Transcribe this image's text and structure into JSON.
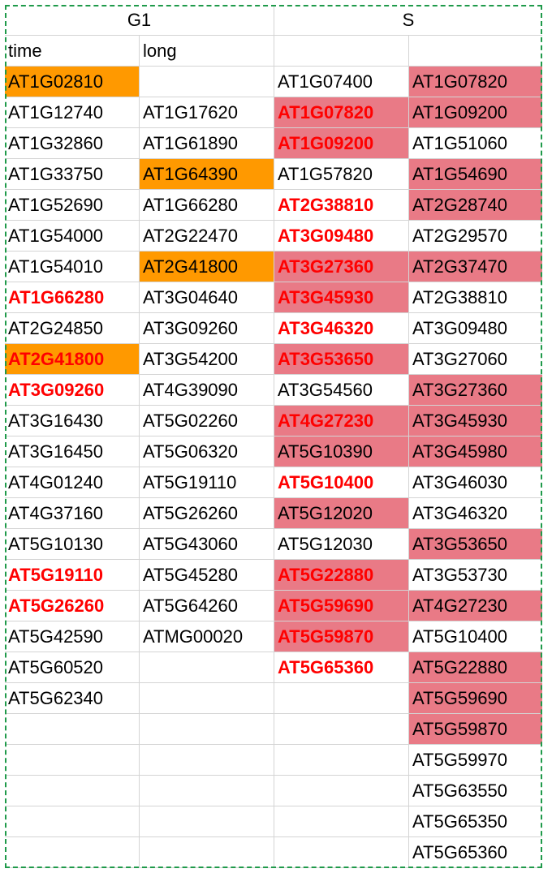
{
  "header": {
    "g1": "G1",
    "s": "S"
  },
  "subheader": [
    "time",
    "long",
    "",
    ""
  ],
  "rows": [
    [
      {
        "t": "AT1G02810",
        "bg": "orange"
      },
      {
        "t": ""
      },
      {
        "t": "AT1G07400"
      },
      {
        "t": "AT1G07820",
        "bg": "pink"
      }
    ],
    [
      {
        "t": "AT1G12740"
      },
      {
        "t": "AT1G17620"
      },
      {
        "t": "AT1G07820",
        "bg": "pink",
        "red": true
      },
      {
        "t": "AT1G09200",
        "bg": "pink"
      }
    ],
    [
      {
        "t": "AT1G32860"
      },
      {
        "t": "AT1G61890"
      },
      {
        "t": "AT1G09200",
        "bg": "pink",
        "red": true
      },
      {
        "t": "AT1G51060"
      }
    ],
    [
      {
        "t": "AT1G33750"
      },
      {
        "t": "AT1G64390",
        "bg": "orange"
      },
      {
        "t": "AT1G57820"
      },
      {
        "t": "AT1G54690",
        "bg": "pink"
      }
    ],
    [
      {
        "t": "AT1G52690"
      },
      {
        "t": "AT1G66280"
      },
      {
        "t": "AT2G38810",
        "red": true
      },
      {
        "t": "AT2G28740",
        "bg": "pink"
      }
    ],
    [
      {
        "t": "AT1G54000"
      },
      {
        "t": "AT2G22470"
      },
      {
        "t": "AT3G09480",
        "red": true
      },
      {
        "t": "AT2G29570"
      }
    ],
    [
      {
        "t": "AT1G54010"
      },
      {
        "t": "AT2G41800",
        "bg": "orange"
      },
      {
        "t": "AT3G27360",
        "bg": "pink",
        "red": true
      },
      {
        "t": "AT2G37470",
        "bg": "pink"
      }
    ],
    [
      {
        "t": "AT1G66280",
        "red": true
      },
      {
        "t": "AT3G04640"
      },
      {
        "t": "AT3G45930",
        "bg": "pink",
        "red": true
      },
      {
        "t": "AT2G38810"
      }
    ],
    [
      {
        "t": "AT2G24850"
      },
      {
        "t": "AT3G09260"
      },
      {
        "t": "AT3G46320",
        "red": true
      },
      {
        "t": "AT3G09480"
      }
    ],
    [
      {
        "t": "AT2G41800",
        "bg": "orange",
        "red": true
      },
      {
        "t": "AT3G54200"
      },
      {
        "t": "AT3G53650",
        "bg": "pink",
        "red": true
      },
      {
        "t": "AT3G27060"
      }
    ],
    [
      {
        "t": "AT3G09260",
        "red": true
      },
      {
        "t": "AT4G39090"
      },
      {
        "t": "AT3G54560"
      },
      {
        "t": "AT3G27360",
        "bg": "pink"
      }
    ],
    [
      {
        "t": "AT3G16430"
      },
      {
        "t": "AT5G02260"
      },
      {
        "t": "AT4G27230",
        "bg": "pink",
        "red": true
      },
      {
        "t": "AT3G45930",
        "bg": "pink"
      }
    ],
    [
      {
        "t": "AT3G16450"
      },
      {
        "t": "AT5G06320"
      },
      {
        "t": "AT5G10390",
        "bg": "pink"
      },
      {
        "t": "AT3G45980",
        "bg": "pink"
      }
    ],
    [
      {
        "t": "AT4G01240"
      },
      {
        "t": "AT5G19110"
      },
      {
        "t": "AT5G10400",
        "red": true
      },
      {
        "t": "AT3G46030"
      }
    ],
    [
      {
        "t": "AT4G37160"
      },
      {
        "t": "AT5G26260"
      },
      {
        "t": "AT5G12020",
        "bg": "pink"
      },
      {
        "t": "AT3G46320"
      }
    ],
    [
      {
        "t": "AT5G10130"
      },
      {
        "t": "AT5G43060"
      },
      {
        "t": "AT5G12030"
      },
      {
        "t": "AT3G53650",
        "bg": "pink"
      }
    ],
    [
      {
        "t": "AT5G19110",
        "red": true
      },
      {
        "t": "AT5G45280"
      },
      {
        "t": "AT5G22880",
        "bg": "pink",
        "red": true
      },
      {
        "t": "AT3G53730"
      }
    ],
    [
      {
        "t": "AT5G26260",
        "red": true
      },
      {
        "t": "AT5G64260"
      },
      {
        "t": "AT5G59690",
        "bg": "pink",
        "red": true
      },
      {
        "t": "AT4G27230",
        "bg": "pink"
      }
    ],
    [
      {
        "t": "AT5G42590"
      },
      {
        "t": "ATMG00020"
      },
      {
        "t": "AT5G59870",
        "bg": "pink",
        "red": true
      },
      {
        "t": "AT5G10400"
      }
    ],
    [
      {
        "t": "AT5G60520"
      },
      {
        "t": ""
      },
      {
        "t": "AT5G65360",
        "red": true
      },
      {
        "t": "AT5G22880",
        "bg": "pink"
      }
    ],
    [
      {
        "t": "AT5G62340"
      },
      {
        "t": ""
      },
      {
        "t": ""
      },
      {
        "t": "AT5G59690",
        "bg": "pink"
      }
    ],
    [
      {
        "t": ""
      },
      {
        "t": ""
      },
      {
        "t": ""
      },
      {
        "t": "AT5G59870",
        "bg": "pink"
      }
    ],
    [
      {
        "t": ""
      },
      {
        "t": ""
      },
      {
        "t": ""
      },
      {
        "t": "AT5G59970"
      }
    ],
    [
      {
        "t": ""
      },
      {
        "t": ""
      },
      {
        "t": ""
      },
      {
        "t": "AT5G63550"
      }
    ],
    [
      {
        "t": ""
      },
      {
        "t": ""
      },
      {
        "t": ""
      },
      {
        "t": "AT5G65350"
      }
    ],
    [
      {
        "t": ""
      },
      {
        "t": ""
      },
      {
        "t": ""
      },
      {
        "t": "AT5G65360"
      }
    ]
  ],
  "colors": {
    "orange": "#ff9900",
    "pink": "#e97a86",
    "red_text": "#ff0000",
    "selection_border": "#1f9a4a"
  }
}
